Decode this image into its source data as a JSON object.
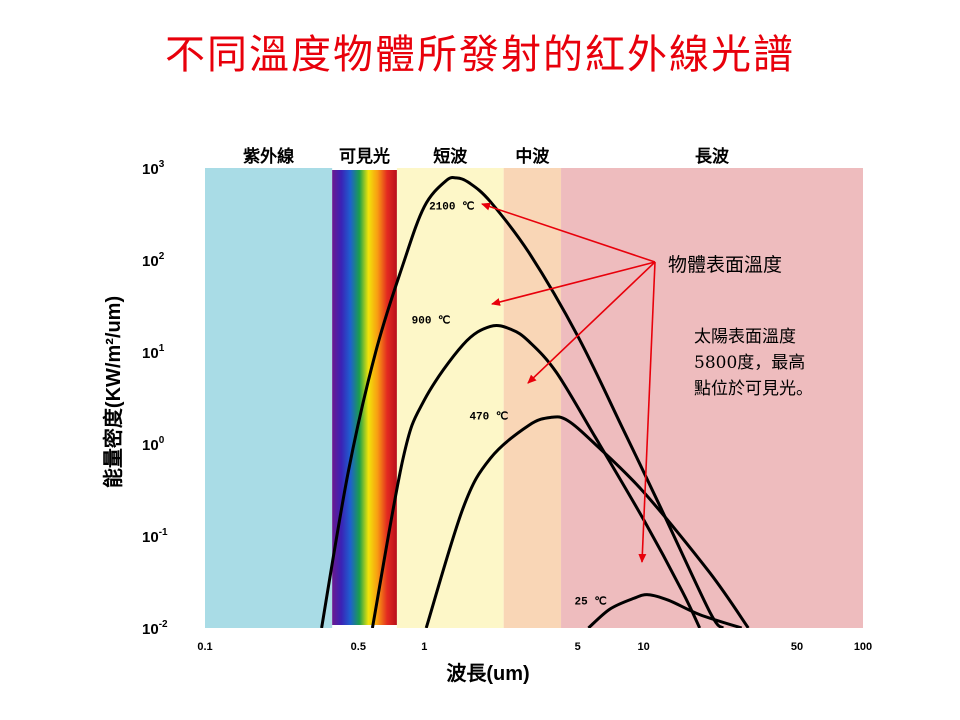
{
  "title": "不同溫度物體所發射的紅外線光譜",
  "colors": {
    "title": "#e8000b",
    "arrow": "#e8000b",
    "curve": "#000000",
    "uv_band": "#a9dce6",
    "visible_band": "#fdf7c8",
    "short_band": "#fdf7c8",
    "mid_band": "#f9d6b6",
    "long_band": "#eebcbe"
  },
  "bands": [
    {
      "label": "紫外線",
      "from": 0.1,
      "to": 0.38
    },
    {
      "label": "可見光",
      "from": 0.38,
      "to": 0.75
    },
    {
      "label": "短波",
      "from": 0.75,
      "to": 2.3
    },
    {
      "label": "中波",
      "from": 2.3,
      "to": 4.2
    },
    {
      "label": "長波",
      "from": 4.2,
      "to": 100
    }
  ],
  "annotations": {
    "surface_temp_label": "物體表面溫度",
    "sun_note": [
      "太陽表面溫度",
      "5800度，最高",
      "點位於可見光。"
    ]
  },
  "chart_data": {
    "type": "line",
    "title": "不同溫度物體所發射的紅外線光譜",
    "xlabel": "波長(um)",
    "ylabel": "能量密度(KW/m²/um)",
    "x_scale": "log",
    "y_scale": "log",
    "xlim": [
      0.1,
      100
    ],
    "ylim": [
      0.01,
      1000
    ],
    "x_ticks": [
      {
        "value": 0.1,
        "label": "0.1"
      },
      {
        "value": 0.5,
        "label": "0.5"
      },
      {
        "value": 1,
        "label": "1"
      },
      {
        "value": 5,
        "label": "5"
      },
      {
        "value": 10,
        "label": "10"
      },
      {
        "value": 50,
        "label": "50"
      },
      {
        "value": 100,
        "label": "100"
      }
    ],
    "y_ticks": [
      {
        "value": 0.01,
        "base": "10",
        "exp": "-2"
      },
      {
        "value": 0.1,
        "base": "10",
        "exp": "-1"
      },
      {
        "value": 1,
        "base": "10",
        "exp": "0"
      },
      {
        "value": 10,
        "base": "10",
        "exp": "1"
      },
      {
        "value": 100,
        "base": "10",
        "exp": "2"
      },
      {
        "value": 1000,
        "base": "10",
        "exp": "3"
      }
    ],
    "series": [
      {
        "name": "2100 ℃",
        "points": [
          [
            0.34,
            0.01
          ],
          [
            0.45,
            0.5
          ],
          [
            0.6,
            10
          ],
          [
            0.8,
            90
          ],
          [
            1.0,
            380
          ],
          [
            1.25,
            720
          ],
          [
            1.4,
            780
          ],
          [
            1.6,
            690
          ],
          [
            2.0,
            430
          ],
          [
            3.0,
            120
          ],
          [
            5.0,
            15
          ],
          [
            8.0,
            1.5
          ],
          [
            12.0,
            0.2
          ],
          [
            20.0,
            0.015
          ],
          [
            23.0,
            0.01
          ]
        ]
      },
      {
        "name": "900 ℃",
        "points": [
          [
            0.58,
            0.01
          ],
          [
            0.8,
            0.7
          ],
          [
            1.0,
            3
          ],
          [
            1.5,
            12
          ],
          [
            2.0,
            19
          ],
          [
            2.5,
            17.5
          ],
          [
            3.0,
            13
          ],
          [
            4.0,
            6
          ],
          [
            6.0,
            1.2
          ],
          [
            10.0,
            0.15
          ],
          [
            15.0,
            0.025
          ],
          [
            18.0,
            0.01
          ]
        ]
      },
      {
        "name": "470 ℃",
        "points": [
          [
            1.02,
            0.01
          ],
          [
            1.5,
            0.2
          ],
          [
            2.0,
            0.7
          ],
          [
            3.0,
            1.6
          ],
          [
            3.8,
            1.95
          ],
          [
            4.5,
            1.8
          ],
          [
            6.0,
            1.0
          ],
          [
            10.0,
            0.3
          ],
          [
            20.0,
            0.04
          ],
          [
            30.0,
            0.01
          ]
        ]
      },
      {
        "name": "25 ℃",
        "points": [
          [
            5.6,
            0.01
          ],
          [
            7.0,
            0.016
          ],
          [
            9.0,
            0.021
          ],
          [
            10.5,
            0.023
          ],
          [
            13.0,
            0.02
          ],
          [
            18.0,
            0.014
          ],
          [
            28.0,
            0.01
          ]
        ]
      }
    ]
  }
}
